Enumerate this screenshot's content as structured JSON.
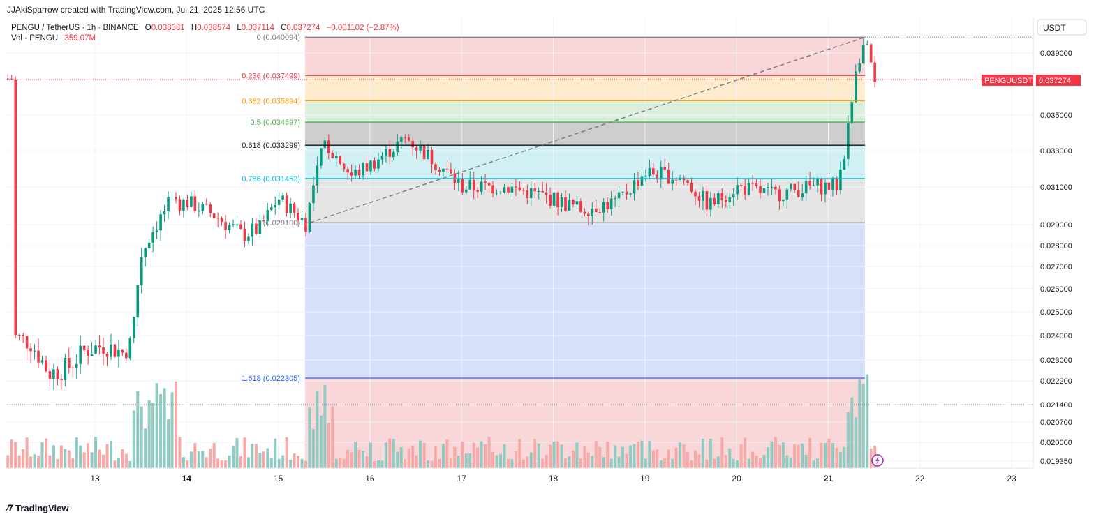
{
  "header": {
    "credit": "JJAkiSparrow created with TradingView.com, Jul 21, 2025 12:56 UTC"
  },
  "legend": {
    "symbol": "PENGU / TetherUS · 1h · BINANCE",
    "o_label": "O",
    "o_val": "0.038381",
    "h_label": "H",
    "h_val": "0.038574",
    "l_label": "L",
    "l_val": "0.037114",
    "c_label": "C",
    "c_val": "0.037274",
    "change": "−0.001102 (−2.87%)",
    "vol_label": "Vol · PENGU",
    "vol_val": "359.07M"
  },
  "price_axis": {
    "currency_button": "USDT",
    "ticks": [
      "0.039000",
      "0.035000",
      "0.033000",
      "0.031000",
      "0.029000",
      "0.028000",
      "0.027000",
      "0.026000",
      "0.025000",
      "0.024000",
      "0.023000",
      "0.022200",
      "0.021400",
      "0.020700",
      "0.020000",
      "0.019350"
    ],
    "last_price_symbol": "PENGUUSDT",
    "last_price": "0.037274"
  },
  "time_axis": {
    "ticks": [
      "13",
      "14",
      "15",
      "16",
      "17",
      "18",
      "19",
      "20",
      "21",
      "22",
      "23"
    ]
  },
  "fib_levels": [
    {
      "label": "0 (0.040094)",
      "color": "#787b86"
    },
    {
      "label": "0.236 (0.037499)",
      "color": "#f23645"
    },
    {
      "label": "0.382 (0.035894)",
      "color": "#ff9800"
    },
    {
      "label": "0.5 (0.034597)",
      "color": "#4caf50"
    },
    {
      "label": "0.618 (0.033299)",
      "color": "#131722"
    },
    {
      "label": "0.786 (0.031452)",
      "color": "#00bcd4"
    },
    {
      "label": "1 (0.029100)",
      "color": "#787b86"
    },
    {
      "label": "1.618 (0.022305)",
      "color": "#2962ff"
    }
  ],
  "colors": {
    "up": "#089981",
    "down": "#f23645",
    "vol_up": "#8fcbc2",
    "vol_down": "#f7a9a7"
  },
  "footer": {
    "brand": "TradingView"
  },
  "chart_data": {
    "type": "candlestick",
    "symbol": "PENGU / TetherUS",
    "interval": "1h",
    "exchange": "BINANCE",
    "x_axis_days": [
      "13",
      "14",
      "15",
      "16",
      "17",
      "18",
      "19",
      "20",
      "21",
      "22",
      "23"
    ],
    "price_axis": "log",
    "last_price": 0.037274,
    "ohlc_last": {
      "open": 0.038381,
      "high": 0.038574,
      "low": 0.037114,
      "close": 0.037274
    },
    "fibonacci_retracement": [
      {
        "ratio": 0,
        "price": 0.040094
      },
      {
        "ratio": 0.236,
        "price": 0.037499
      },
      {
        "ratio": 0.382,
        "price": 0.035894
      },
      {
        "ratio": 0.5,
        "price": 0.034597
      },
      {
        "ratio": 0.618,
        "price": 0.033299
      },
      {
        "ratio": 0.786,
        "price": 0.031452
      },
      {
        "ratio": 1,
        "price": 0.0291
      },
      {
        "ratio": 1.618,
        "price": 0.022305
      }
    ],
    "approx_close_path": [
      {
        "day": 12.1,
        "close": 0.024
      },
      {
        "day": 12.3,
        "close": 0.0237
      },
      {
        "day": 12.5,
        "close": 0.0225
      },
      {
        "day": 12.7,
        "close": 0.0227
      },
      {
        "day": 12.9,
        "close": 0.0234
      },
      {
        "day": 13.1,
        "close": 0.0236
      },
      {
        "day": 13.3,
        "close": 0.0233
      },
      {
        "day": 13.4,
        "close": 0.0237
      },
      {
        "day": 13.5,
        "close": 0.0275
      },
      {
        "day": 13.6,
        "close": 0.0285
      },
      {
        "day": 13.8,
        "close": 0.03
      },
      {
        "day": 14.0,
        "close": 0.0302
      },
      {
        "day": 14.3,
        "close": 0.0295
      },
      {
        "day": 14.6,
        "close": 0.0285
      },
      {
        "day": 14.8,
        "close": 0.0288
      },
      {
        "day": 15.0,
        "close": 0.0304
      },
      {
        "day": 15.3,
        "close": 0.0291
      },
      {
        "day": 15.5,
        "close": 0.0335
      },
      {
        "day": 15.8,
        "close": 0.0316
      },
      {
        "day": 16.0,
        "close": 0.0322
      },
      {
        "day": 16.4,
        "close": 0.0337
      },
      {
        "day": 16.8,
        "close": 0.032
      },
      {
        "day": 17.0,
        "close": 0.031
      },
      {
        "day": 17.5,
        "close": 0.031
      },
      {
        "day": 17.9,
        "close": 0.0305
      },
      {
        "day": 18.3,
        "close": 0.0298
      },
      {
        "day": 18.7,
        "close": 0.0302
      },
      {
        "day": 19.0,
        "close": 0.0318
      },
      {
        "day": 19.4,
        "close": 0.0315
      },
      {
        "day": 19.7,
        "close": 0.03
      },
      {
        "day": 20.0,
        "close": 0.031
      },
      {
        "day": 20.4,
        "close": 0.0306
      },
      {
        "day": 20.8,
        "close": 0.031
      },
      {
        "day": 21.1,
        "close": 0.0311
      },
      {
        "day": 21.2,
        "close": 0.0335
      },
      {
        "day": 21.3,
        "close": 0.038
      },
      {
        "day": 21.4,
        "close": 0.0398
      },
      {
        "day": 21.5,
        "close": 0.0373
      }
    ]
  }
}
